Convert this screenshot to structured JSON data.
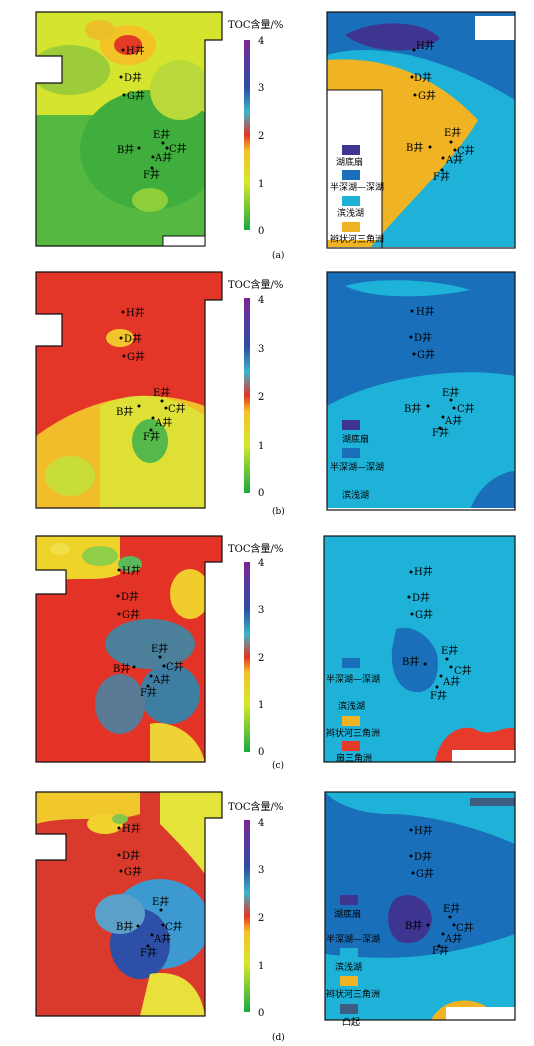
{
  "colorbar": {
    "title": "TOC含量/%",
    "ticks": [
      "4",
      "3",
      "2",
      "1",
      "0"
    ]
  },
  "wells": [
    "H井",
    "D井",
    "G井",
    "E井",
    "B井",
    "C井",
    "A井",
    "F井"
  ],
  "panels": [
    {
      "caption": "(a)",
      "legend": [
        "湖底扇",
        "半深湖—深湖",
        "滨浅湖",
        "辫状河三角洲"
      ]
    },
    {
      "caption": "(b)",
      "legend": [
        "湖底扇",
        "半深湖—深湖",
        "滨浅湖"
      ]
    },
    {
      "caption": "(c)",
      "legend": [
        "半深湖—深湖",
        "滨浅湖",
        "辫状河三角洲",
        "扇三角洲"
      ]
    },
    {
      "caption": "(d)",
      "legend": [
        "湖底扇",
        "半深湖—深湖",
        "滨浅湖",
        "辫状河三角洲",
        "凸起"
      ]
    }
  ],
  "colors": {
    "lake_fan": "#3d3590",
    "deep_lake": "#1a6fba",
    "shallow_lake": "#1eb2d8",
    "braided_delta": "#f0b323",
    "fan_delta": "#e63a2b",
    "uplift": "#3e5c82"
  }
}
